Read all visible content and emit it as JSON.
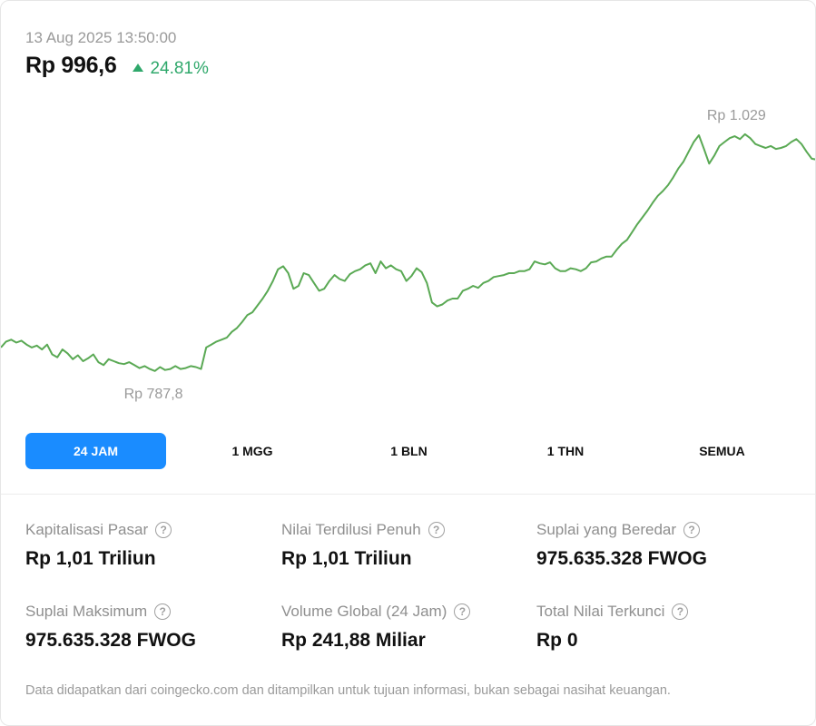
{
  "header": {
    "timestamp": "13 Aug 2025 13:50:00",
    "price": "Rp 996,6",
    "change": "24.81%",
    "colors": {
      "positive": "#2fa86b",
      "line": "#5aa954",
      "accent": "#1a8cff"
    }
  },
  "chart_data": {
    "type": "line",
    "period": "24 JAM",
    "high_label": "Rp 1.029",
    "low_label": "Rp 787,8",
    "high": 1029,
    "low": 787.8,
    "values": [
      812,
      818,
      820,
      817,
      819,
      815,
      812,
      814,
      810,
      815,
      805,
      802,
      810,
      806,
      800,
      804,
      798,
      801,
      805,
      797,
      794,
      800,
      798,
      796,
      795,
      797,
      794,
      791,
      793,
      790,
      788,
      792,
      789,
      790,
      793,
      790,
      791,
      793,
      792,
      790,
      812,
      815,
      818,
      820,
      822,
      828,
      832,
      838,
      845,
      848,
      855,
      862,
      870,
      880,
      892,
      895,
      888,
      872,
      875,
      888,
      886,
      878,
      870,
      872,
      880,
      886,
      882,
      880,
      887,
      890,
      892,
      896,
      898,
      888,
      900,
      893,
      896,
      892,
      890,
      880,
      885,
      893,
      889,
      878,
      858,
      854,
      856,
      860,
      862,
      862,
      870,
      872,
      875,
      873,
      878,
      880,
      884,
      885,
      886,
      888,
      888,
      890,
      890,
      892,
      900,
      898,
      897,
      899,
      893,
      890,
      890,
      893,
      892,
      890,
      893,
      899,
      900,
      903,
      905,
      905,
      912,
      918,
      922,
      930,
      938,
      945,
      952,
      960,
      967,
      972,
      978,
      986,
      995,
      1002,
      1012,
      1022,
      1029,
      1015,
      1000,
      1008,
      1018,
      1022,
      1026,
      1028,
      1025,
      1030,
      1026,
      1020,
      1018,
      1016,
      1018,
      1015,
      1016,
      1018,
      1022,
      1025,
      1020,
      1012,
      1005,
      1004
    ]
  },
  "tabs": [
    {
      "label": "24 JAM",
      "active": true
    },
    {
      "label": "1 MGG",
      "active": false
    },
    {
      "label": "1 BLN",
      "active": false
    },
    {
      "label": "1 THN",
      "active": false
    },
    {
      "label": "SEMUA",
      "active": false
    }
  ],
  "stats": [
    {
      "label": "Kapitalisasi Pasar",
      "value": "Rp 1,01 Triliun"
    },
    {
      "label": "Nilai Terdilusi Penuh",
      "value": "Rp 1,01 Triliun"
    },
    {
      "label": "Suplai yang Beredar",
      "value": "975.635.328 FWOG"
    },
    {
      "label": "Suplai Maksimum",
      "value": "975.635.328 FWOG"
    },
    {
      "label": "Volume Global (24 Jam)",
      "value": "Rp 241,88 Miliar"
    },
    {
      "label": "Total Nilai Terkunci",
      "value": "Rp 0"
    }
  ],
  "help_glyph": "?",
  "footer": "Data didapatkan dari coingecko.com dan ditampilkan untuk tujuan informasi, bukan sebagai nasihat keuangan."
}
